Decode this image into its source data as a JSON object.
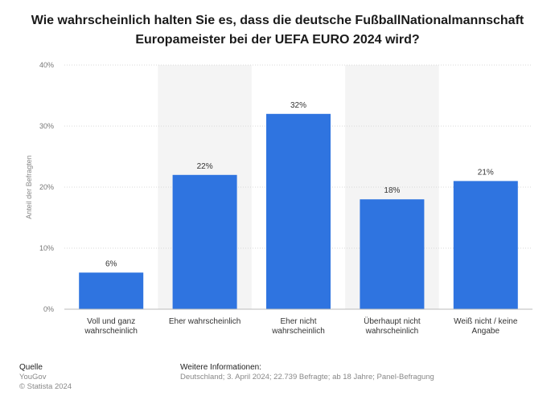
{
  "title": "Wie wahrscheinlich halten Sie es, dass die deutsche FußballNationalmannschaft Europameister bei der UEFA EURO 2024 wird?",
  "chart_data": {
    "type": "bar",
    "categories": [
      [
        "Voll und ganz",
        "wahrscheinlich"
      ],
      [
        "Eher wahrscheinlich"
      ],
      [
        "Eher nicht",
        "wahrscheinlich"
      ],
      [
        "Überhaupt nicht",
        "wahrscheinlich"
      ],
      [
        "Weiß nicht / keine",
        "Angabe"
      ]
    ],
    "values": [
      6,
      22,
      32,
      18,
      21
    ],
    "value_labels": [
      "6%",
      "22%",
      "32%",
      "18%",
      "21%"
    ],
    "ylabel": "Anteil der Befragten",
    "ylim": [
      0,
      40
    ],
    "yticks": [
      0,
      10,
      20,
      30,
      40
    ],
    "ytick_labels": [
      "0%",
      "10%",
      "20%",
      "30%",
      "40%"
    ],
    "grid": true,
    "bar_color": "#2f74e0",
    "band_color": "#f4f4f4"
  },
  "footer": {
    "source_heading": "Quelle",
    "source_lines": [
      "YouGov",
      "© Statista 2024"
    ],
    "info_heading": "Weitere Informationen:",
    "info_text": "Deutschland; 3. April 2024; 22.739 Befragte; ab 18 Jahre; Panel-Befragung"
  }
}
